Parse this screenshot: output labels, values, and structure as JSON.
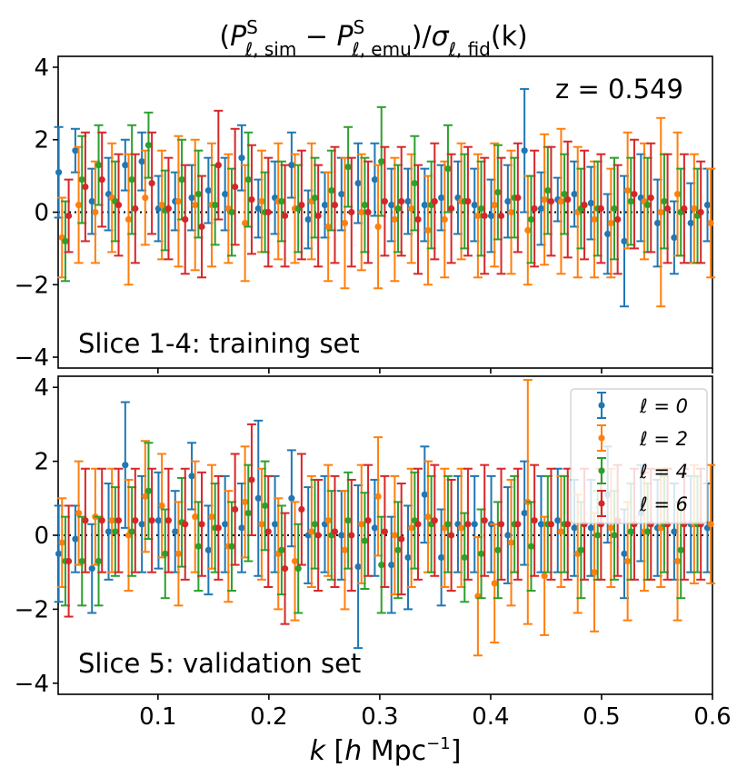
{
  "chart_data": {
    "type": "scatter",
    "title_parts": {
      "lparen": "(",
      "P": "P",
      "sup": "S",
      "sub_sim": "ℓ, sim",
      "minus": " − ",
      "sub_emu": "ℓ, emu",
      "close": ")/",
      "sigma": "σ",
      "sub_fid": "ℓ, fid",
      "kpart": "(k)"
    },
    "xlabel": "k [h Mpc⁻¹]",
    "xlabel_parts": {
      "k": "k",
      "open": " [",
      "h": "h",
      "mpc": " Mpc",
      "exp": "−1",
      "close": "]"
    },
    "xlim": [
      0.01,
      0.6
    ],
    "xticks": [
      0.1,
      0.2,
      0.3,
      0.4,
      0.5,
      0.6
    ],
    "xtick_labels": [
      "0.1",
      "0.2",
      "0.3",
      "0.4",
      "0.5",
      "0.6"
    ],
    "ylim": [
      -4.3,
      4.3
    ],
    "yticks": [
      -4,
      -2,
      0,
      2,
      4
    ],
    "ytick_labels": [
      "−4",
      "−2",
      "0",
      "2",
      "4"
    ],
    "redshift_label": "z = 0.549",
    "legend": {
      "location": "top-right",
      "entries": [
        "ℓ = 0",
        "ℓ = 2",
        "ℓ = 4",
        "ℓ = 6"
      ]
    },
    "series_colors": [
      "#1f77b4",
      "#ff7f0e",
      "#2ca02c",
      "#d62728"
    ],
    "series_offsets_k": [
      -0.0045,
      -0.0015,
      0.0015,
      0.0045
    ],
    "k": [
      0.015,
      0.03,
      0.045,
      0.06,
      0.075,
      0.09,
      0.105,
      0.12,
      0.135,
      0.15,
      0.165,
      0.18,
      0.195,
      0.21,
      0.225,
      0.24,
      0.255,
      0.27,
      0.285,
      0.3,
      0.315,
      0.33,
      0.345,
      0.36,
      0.375,
      0.39,
      0.405,
      0.42,
      0.435,
      0.45,
      0.465,
      0.48,
      0.495,
      0.51,
      0.525,
      0.54,
      0.555,
      0.57,
      0.585,
      0.6
    ],
    "panels": [
      {
        "label": "Slice 1-4: training set",
        "series": [
          {
            "name": "ℓ = 0",
            "values": [
              1.1,
              1.7,
              0.3,
              0.5,
              1.3,
              1.4,
              0.1,
              0.3,
              0.4,
              0.6,
              0.5,
              1.5,
              0.1,
              0.4,
              1.3,
              -0.2,
              0.2,
              0.5,
              0.8,
              0.9,
              0.2,
              0.3,
              0.2,
              0.4,
              0.4,
              0.2,
              -0.1,
              0.3,
              1.7,
              0.1,
              0.35,
              0.5,
              0.25,
              -0.6,
              -0.8,
              0.4,
              -0.3,
              -0.7,
              -0.3,
              0.2
            ],
            "errors": [
              1.25,
              0.6,
              0.9,
              1.0,
              0.7,
              0.8,
              0.9,
              0.8,
              0.9,
              0.9,
              1.0,
              0.9,
              0.8,
              1.0,
              0.9,
              0.8,
              0.9,
              1.0,
              1.1,
              1.0,
              1.0,
              0.9,
              1.0,
              0.9,
              1.0,
              1.0,
              1.0,
              1.0,
              1.7,
              1.0,
              0.6,
              0.9,
              1.0,
              1.1,
              1.8,
              1.2,
              1.2,
              1.0,
              1.1,
              1.0
            ]
          },
          {
            "name": "ℓ = 2",
            "values": [
              -0.7,
              0.2,
              0.0,
              0.4,
              -0.2,
              0.4,
              0.2,
              0.3,
              0.2,
              0.2,
              0.1,
              -0.3,
              0.3,
              0.3,
              0.1,
              0.3,
              -0.4,
              -0.3,
              0.0,
              -0.4,
              -0.2,
              0.1,
              -0.5,
              -0.2,
              0.3,
              -0.1,
              0.2,
              0.0,
              -0.5,
              0.35,
              0.3,
              0.0,
              -0.2,
              -0.3,
              0.6,
              0.3,
              0.0,
              0.5,
              0.1,
              -0.3
            ],
            "errors": [
              1.1,
              1.6,
              1.4,
              1.5,
              1.8,
              1.3,
              1.5,
              1.8,
              1.8,
              1.7,
              1.5,
              1.6,
              1.4,
              1.6,
              1.5,
              1.6,
              1.5,
              1.8,
              1.6,
              1.7,
              1.7,
              1.5,
              1.5,
              1.6,
              1.6,
              1.7,
              1.7,
              1.7,
              1.5,
              1.8,
              2.0,
              1.8,
              1.6,
              1.5,
              1.6,
              1.6,
              2.6,
              1.7,
              1.5,
              1.5
            ]
          },
          {
            "name": "ℓ = 4",
            "values": [
              -0.8,
              0.9,
              1.3,
              0.3,
              0.9,
              1.85,
              0.05,
              0.9,
              0.5,
              0.2,
              0.0,
              0.9,
              0.0,
              0.3,
              0.1,
              0.4,
              0.6,
              1.25,
              0.2,
              1.4,
              0.1,
              0.8,
              0.2,
              1.2,
              0.3,
              0.1,
              0.55,
              0.4,
              -0.2,
              0.6,
              0.5,
              0.1,
              0.1,
              0.1,
              0.3,
              0.2,
              0.3,
              0.0,
              -0.1,
              0.2
            ],
            "errors": [
              1.1,
              1.2,
              1.1,
              1.1,
              1.5,
              0.9,
              1.1,
              1.1,
              1.2,
              1.1,
              1.2,
              1.3,
              1.1,
              1.1,
              1.2,
              1.1,
              1.1,
              1.1,
              1.3,
              1.5,
              1.2,
              1.3,
              1.2,
              1.2,
              1.3,
              1.3,
              1.3,
              1.1,
              1.2,
              1.2,
              1.1,
              1.1,
              1.3,
              1.4,
              1.2,
              1.3,
              1.3,
              1.2,
              1.3,
              1.1
            ]
          },
          {
            "name": "ℓ = 6",
            "values": [
              -0.1,
              0.7,
              0.9,
              0.2,
              0.1,
              0.8,
              0.1,
              -0.2,
              -0.4,
              1.3,
              0.7,
              0.35,
              0.0,
              -0.1,
              0.2,
              -0.1,
              0.2,
              0.0,
              0.0,
              0.3,
              0.3,
              -0.2,
              0.3,
              0.1,
              0.3,
              -0.1,
              -0.1,
              0.4,
              0.1,
              0.3,
              0.35,
              0.2,
              0.1,
              -0.2,
              0.5,
              0.4,
              0.1,
              0.1,
              0.0,
              -0.1
            ],
            "errors": [
              1.0,
              1.5,
              1.3,
              1.4,
              1.5,
              1.4,
              1.4,
              1.5,
              1.4,
              1.5,
              1.6,
              1.5,
              1.5,
              1.4,
              1.5,
              1.4,
              1.6,
              1.5,
              1.4,
              1.5,
              1.5,
              1.5,
              1.6,
              1.5,
              1.5,
              1.6,
              1.6,
              1.5,
              1.6,
              1.5,
              1.6,
              1.5,
              1.5,
              1.5,
              1.5,
              1.5,
              1.5,
              1.5,
              1.4,
              1.4
            ]
          }
        ]
      },
      {
        "label": "Slice 5: validation set",
        "series": [
          {
            "name": "ℓ = 0",
            "values": [
              -0.5,
              -0.1,
              -0.9,
              0.1,
              1.9,
              0.3,
              0.4,
              0.1,
              1.6,
              -0.4,
              0.3,
              0.2,
              1.0,
              0.3,
              1.0,
              0.0,
              0.3,
              0.0,
              -0.85,
              0.2,
              -0.8,
              -0.6,
              1.1,
              -0.6,
              0.3,
              0.3,
              0.3,
              0.0,
              0.6,
              0.3,
              0.4,
              0.2,
              0.2,
              1.1,
              -0.5,
              0.6,
              0.2,
              0.1,
              0.3,
              0.2
            ],
            "errors": [
              1.3,
              0.9,
              1.2,
              1.3,
              1.7,
              1.3,
              1.3,
              1.1,
              0.9,
              1.2,
              1.3,
              1.2,
              2.1,
              1.3,
              1.3,
              1.3,
              1.3,
              1.2,
              2.2,
              1.3,
              1.3,
              1.4,
              1.3,
              1.3,
              1.3,
              1.3,
              1.3,
              1.3,
              1.4,
              1.3,
              1.4,
              1.3,
              1.3,
              1.3,
              1.2,
              1.3,
              1.3,
              1.3,
              1.3,
              1.2
            ]
          },
          {
            "name": "ℓ = 2",
            "values": [
              -0.2,
              0.6,
              0.5,
              0.4,
              0.0,
              1.05,
              0.8,
              -0.5,
              0.5,
              0.5,
              -0.3,
              0.9,
              0.3,
              -0.5,
              -0.7,
              0.1,
              0.4,
              -0.4,
              0.3,
              1.05,
              0.0,
              0.2,
              0.5,
              0.2,
              0.2,
              -1.65,
              -1.3,
              -0.2,
              0.9,
              -1.1,
              0.1,
              -0.5,
              -1.0,
              0.2,
              -0.7,
              0.1,
              0.2,
              -0.7,
              0.3,
              0.3
            ],
            "errors": [
              1.2,
              1.4,
              1.3,
              1.4,
              1.5,
              1.5,
              1.4,
              1.4,
              1.5,
              1.4,
              1.5,
              1.5,
              1.5,
              1.5,
              1.6,
              1.5,
              1.5,
              1.6,
              1.6,
              1.6,
              1.6,
              1.6,
              1.5,
              1.6,
              1.6,
              1.6,
              1.6,
              1.7,
              3.3,
              1.6,
              1.5,
              1.6,
              1.6,
              1.6,
              1.6,
              1.6,
              1.6,
              1.6,
              1.6,
              1.6
            ]
          },
          {
            "name": "ℓ = 4",
            "values": [
              -0.7,
              -0.7,
              -0.7,
              0.1,
              0.1,
              1.2,
              -0.5,
              0.35,
              -0.3,
              0.2,
              -0.3,
              0.6,
              0.8,
              -0.4,
              -0.9,
              0.3,
              0.0,
              0.4,
              -0.15,
              -0.8,
              -0.4,
              0.4,
              0.3,
              0.3,
              -0.6,
              -0.5,
              -0.4,
              0.3,
              -0.3,
              0.3,
              0.3,
              -0.4,
              0.0,
              0.0,
              0.1,
              0.1,
              0.3,
              -0.4,
              0.3,
              0.3
            ],
            "errors": [
              1.2,
              1.2,
              1.2,
              1.2,
              1.2,
              1.3,
              1.2,
              1.2,
              1.2,
              1.2,
              1.2,
              1.3,
              1.2,
              1.2,
              1.2,
              1.2,
              1.2,
              1.3,
              1.3,
              1.3,
              1.3,
              1.3,
              1.3,
              1.3,
              1.2,
              1.2,
              1.3,
              1.3,
              1.2,
              1.3,
              1.3,
              1.3,
              1.2,
              1.2,
              1.3,
              1.3,
              1.3,
              1.3,
              1.3,
              1.3
            ]
          },
          {
            "name": "ℓ = 6",
            "values": [
              -0.7,
              0.4,
              0.4,
              0.4,
              0.4,
              0.4,
              0.4,
              0.3,
              0.3,
              0.2,
              0.7,
              1.5,
              0.1,
              -0.9,
              0.7,
              0.0,
              0.1,
              0.0,
              0.4,
              0.1,
              -0.1,
              0.3,
              0.4,
              0.0,
              0.3,
              0.4,
              0.3,
              0.3,
              0.4,
              0.3,
              0.3,
              0.3,
              0.3,
              0.4,
              0.3,
              0.3,
              0.3,
              0.3,
              0.3,
              0.3
            ],
            "errors": [
              1.5,
              1.4,
              1.4,
              1.4,
              1.4,
              1.4,
              1.4,
              1.5,
              1.4,
              1.4,
              1.5,
              1.5,
              1.5,
              1.5,
              1.5,
              1.5,
              1.5,
              1.5,
              1.5,
              1.5,
              1.5,
              1.5,
              1.5,
              1.5,
              1.5,
              1.5,
              1.5,
              1.5,
              1.5,
              1.5,
              1.5,
              1.5,
              1.5,
              1.5,
              1.5,
              1.5,
              1.5,
              1.5,
              1.5,
              1.5
            ]
          }
        ]
      }
    ]
  }
}
